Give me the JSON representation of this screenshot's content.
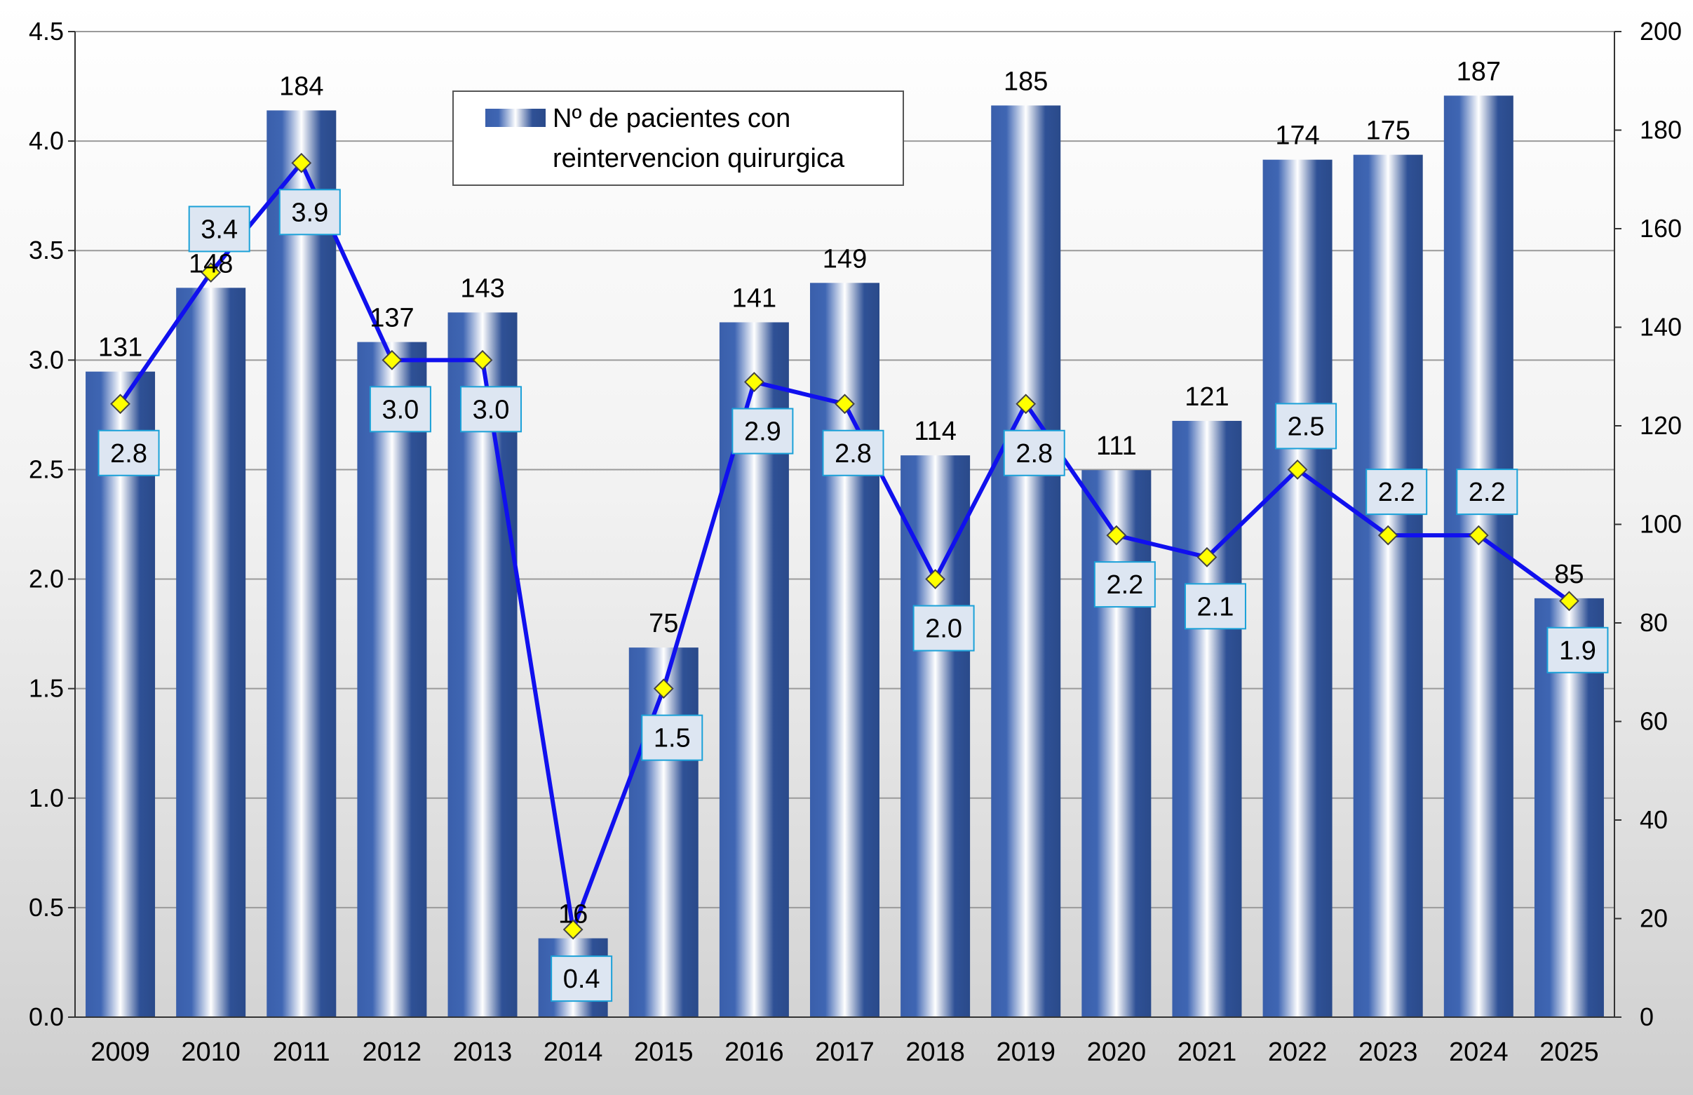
{
  "chart_data": {
    "type": "bar",
    "categories": [
      "2009",
      "2010",
      "2011",
      "2012",
      "2013",
      "2014",
      "2015",
      "2016",
      "2017",
      "2018",
      "2019",
      "2020",
      "2021",
      "2022",
      "2023",
      "2024",
      "2025"
    ],
    "series": [
      {
        "name": "Nº de pacientes con reintervencion quirurgica",
        "chart_type": "bar",
        "axis": "right",
        "values": [
          131,
          148,
          184,
          137,
          143,
          16,
          75,
          141,
          149,
          114,
          185,
          111,
          121,
          174,
          175,
          187,
          85
        ]
      },
      {
        "chart_type": "line",
        "axis": "left",
        "values": [
          2.8,
          3.4,
          3.9,
          3.0,
          3.0,
          0.4,
          1.5,
          2.9,
          2.8,
          2.0,
          2.8,
          2.2,
          2.1,
          2.5,
          2.2,
          2.2,
          1.9
        ],
        "labels": [
          "2.8",
          "3.4",
          "3.9",
          "3.0",
          "3.0",
          "0.4",
          "1.5",
          "2.9",
          "2.8",
          "2.0",
          "2.8",
          "2.2",
          "2.1",
          "2.5",
          "2.2",
          "2.2",
          "1.9"
        ]
      }
    ],
    "y_left": {
      "min": 0,
      "max": 4.5,
      "ticks": [
        "0.0",
        "0.5",
        "1.0",
        "1.5",
        "2.0",
        "2.5",
        "3.0",
        "3.5",
        "4.0",
        "4.5"
      ]
    },
    "y_right": {
      "min": 0,
      "max": 200,
      "ticks": [
        "0",
        "20",
        "40",
        "60",
        "80",
        "100",
        "120",
        "140",
        "160",
        "180",
        "200"
      ]
    },
    "grid": "horizontal",
    "legend": {
      "placement": "top-center",
      "line1": "Nº de pacientes con",
      "line2": "reintervencion quirurgica"
    },
    "colors": {
      "bar_dark": "#2e4f8f",
      "bar_mid": "#3d64b0",
      "bar_light": "#ffffff",
      "line": "#1010ee",
      "marker": "#ffff00",
      "label_box_fill": "#dde6f2",
      "label_box_stroke": "#1ba1d8",
      "grid": "#9a9a9a"
    }
  }
}
